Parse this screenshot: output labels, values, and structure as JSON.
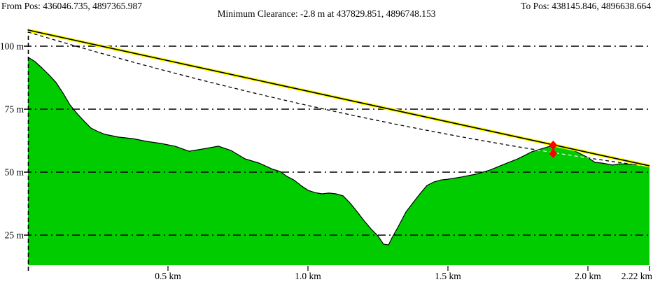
{
  "header": {
    "from_pos": "From Pos: 436046.735, 4897365.987",
    "to_pos": "To Pos: 438145.846, 4896638.664",
    "min_clearance": "Minimum Clearance: -2.8 m at 437829.851, 4896748.153"
  },
  "chart_data": {
    "type": "area",
    "title": "Minimum Clearance: -2.8 m at 437829.851, 4896748.153",
    "x_unit": "km",
    "y_unit": "m",
    "xlim": [
      0,
      2.22
    ],
    "ylim": [
      13,
      107
    ],
    "grid": "dash-dot horizontal lines at each y tick",
    "x_ticks": [
      {
        "value": 0.5,
        "label": "0.5 km"
      },
      {
        "value": 1.0,
        "label": "1.0 km"
      },
      {
        "value": 1.5,
        "label": "1.5 km"
      },
      {
        "value": 2.0,
        "label": "2.0 km"
      },
      {
        "value": 2.22,
        "label": "2.22 km"
      }
    ],
    "y_ticks": [
      {
        "value": 100,
        "label": "100 m"
      },
      {
        "value": 75,
        "label": "75 m"
      },
      {
        "value": 50,
        "label": "50 m"
      },
      {
        "value": 25,
        "label": "25 m"
      }
    ],
    "terrain_profile_km_m": [
      [
        0,
        95.6
      ],
      [
        0.025,
        93.9
      ],
      [
        0.05,
        91.4
      ],
      [
        0.075,
        88.6
      ],
      [
        0.1,
        85.6
      ],
      [
        0.125,
        81.4
      ],
      [
        0.15,
        76.7
      ],
      [
        0.175,
        73.3
      ],
      [
        0.2,
        70.3
      ],
      [
        0.225,
        67.5
      ],
      [
        0.25,
        66.1
      ],
      [
        0.275,
        65
      ],
      [
        0.325,
        63.9
      ],
      [
        0.375,
        63.3
      ],
      [
        0.425,
        62.2
      ],
      [
        0.475,
        61.4
      ],
      [
        0.525,
        60.3
      ],
      [
        0.575,
        58.3
      ],
      [
        0.625,
        59.2
      ],
      [
        0.68,
        60.3
      ],
      [
        0.725,
        58.6
      ],
      [
        0.775,
        55.3
      ],
      [
        0.825,
        53.6
      ],
      [
        0.875,
        51.1
      ],
      [
        0.9,
        50.3
      ],
      [
        0.925,
        48.3
      ],
      [
        0.95,
        46.9
      ],
      [
        0.975,
        44.7
      ],
      [
        1.0,
        42.8
      ],
      [
        1.025,
        41.9
      ],
      [
        1.05,
        41.4
      ],
      [
        1.075,
        41.7
      ],
      [
        1.1,
        41.4
      ],
      [
        1.125,
        40.6
      ],
      [
        1.15,
        37.8
      ],
      [
        1.175,
        34.4
      ],
      [
        1.2,
        30.8
      ],
      [
        1.225,
        27.5
      ],
      [
        1.25,
        24.7
      ],
      [
        1.27,
        21.4
      ],
      [
        1.288,
        21.1
      ],
      [
        1.3,
        23.9
      ],
      [
        1.325,
        28.9
      ],
      [
        1.35,
        34.2
      ],
      [
        1.375,
        37.8
      ],
      [
        1.4,
        41.4
      ],
      [
        1.425,
        44.7
      ],
      [
        1.45,
        46.1
      ],
      [
        1.475,
        46.9
      ],
      [
        1.5,
        47.2
      ],
      [
        1.55,
        48.1
      ],
      [
        1.6,
        49.2
      ],
      [
        1.65,
        50.8
      ],
      [
        1.7,
        53.1
      ],
      [
        1.75,
        55.3
      ],
      [
        1.8,
        58.1
      ],
      [
        1.838,
        59.4
      ],
      [
        1.875,
        60.6
      ],
      [
        1.9,
        60.3
      ],
      [
        1.925,
        59.4
      ],
      [
        1.95,
        58.6
      ],
      [
        1.975,
        57.2
      ],
      [
        2.0,
        55.8
      ],
      [
        2.025,
        53.9
      ],
      [
        2.05,
        53.6
      ],
      [
        2.088,
        52.8
      ],
      [
        2.113,
        53.3
      ],
      [
        2.15,
        53.1
      ],
      [
        2.188,
        52.8
      ],
      [
        2.22,
        52.2
      ]
    ],
    "line_of_sight": {
      "start_km": 0,
      "start_m": 106.4,
      "end_km": 2.22,
      "end_m": 52.5
    },
    "curved_los": {
      "start": [
        0,
        105.6
      ],
      "control": [
        1.11,
        68.6
      ],
      "end": [
        2.22,
        52.2
      ]
    },
    "min_clearance_marker": {
      "km": 1.876,
      "m_upper": 60.7,
      "m_lower": 57.4,
      "clearance_m": -2.8
    },
    "colors": {
      "terrain_fill": "#00cc00",
      "terrain_outline": "#000000",
      "los_outer": "#ffff00",
      "los_core": "#000000",
      "curved_dash": "#000000",
      "curved_dash_on_terrain": "#ffffff",
      "marker": "#ff0000",
      "grid": "#000000"
    }
  }
}
